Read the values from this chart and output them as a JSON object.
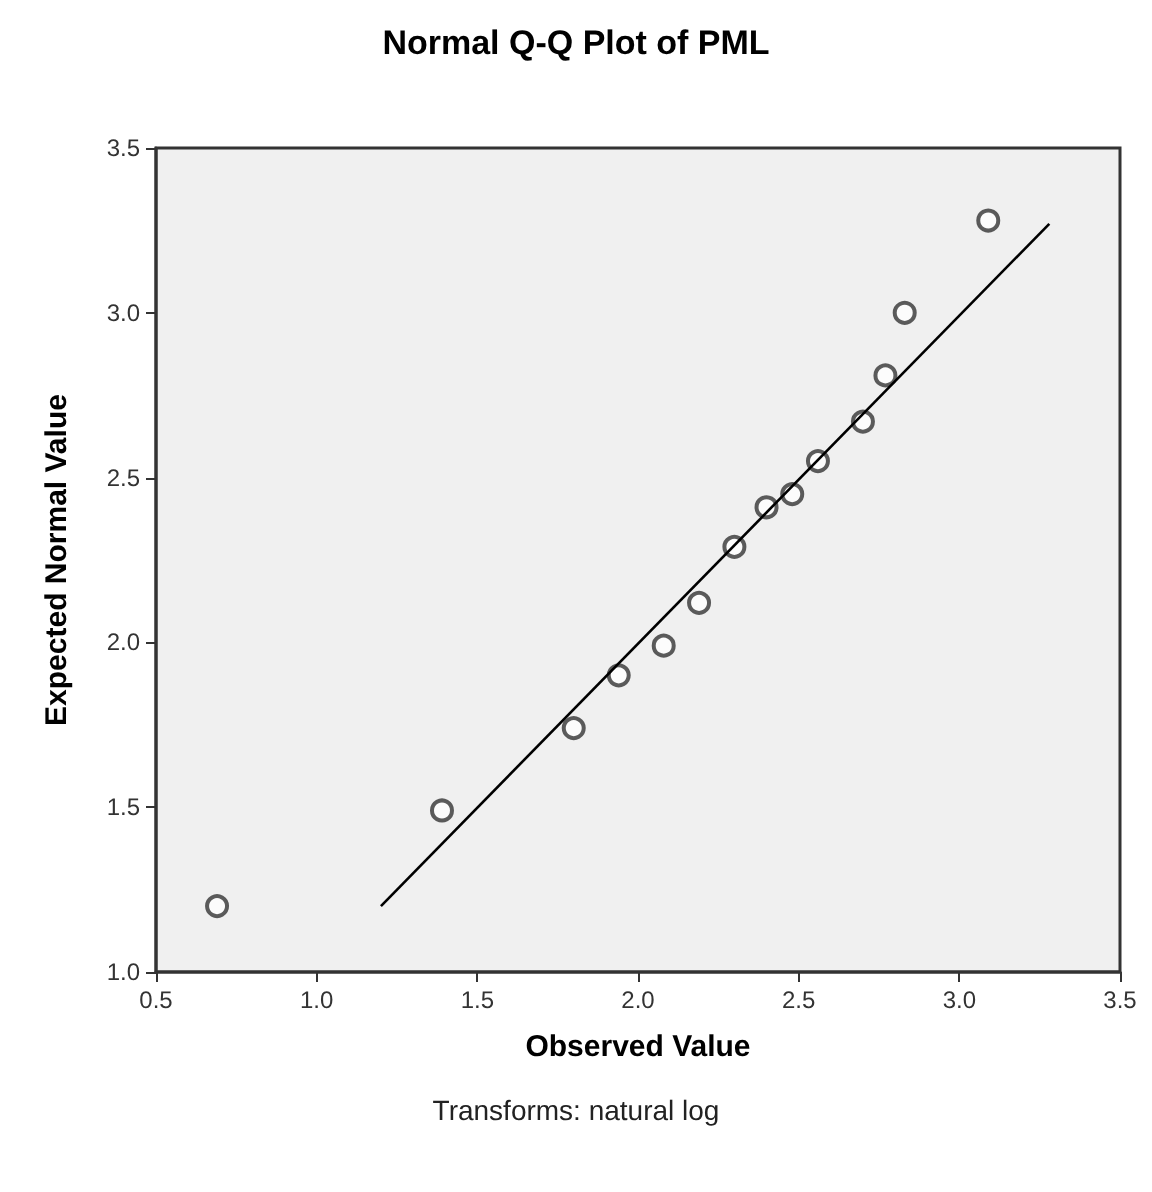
{
  "chart_data": {
    "type": "scatter",
    "title": "Normal Q-Q Plot of PML",
    "xlabel": "Observed Value",
    "ylabel": "Expected Normal Value",
    "annotations": [
      "Transforms: natural log"
    ],
    "series": [
      {
        "color": "#333333",
        "marker": "circle",
        "x": [
          0.69,
          1.39,
          1.8,
          1.94,
          2.08,
          2.19,
          2.3,
          2.4,
          2.48,
          2.56,
          2.7,
          2.77,
          2.83,
          3.09
        ],
        "values": [
          1.2,
          1.49,
          1.74,
          1.9,
          1.99,
          2.12,
          2.29,
          2.41,
          2.45,
          2.55,
          2.67,
          2.81,
          3.0,
          3.28
        ]
      },
      {
        "type": "line",
        "color": "#000000",
        "marker": "none",
        "x": [
          1.2,
          3.28
        ],
        "values": [
          1.2,
          3.27
        ]
      }
    ],
    "xlim": [
      0.5,
      3.5
    ],
    "xticks": [
      {
        "value": 0.5,
        "label": "0.5"
      },
      {
        "value": 1,
        "label": "1.0"
      },
      {
        "value": 1.5,
        "label": "1.5"
      },
      {
        "value": 2,
        "label": "2.0"
      },
      {
        "value": 2.5,
        "label": "2.5"
      },
      {
        "value": 3,
        "label": "3.0"
      },
      {
        "value": 3.5,
        "label": "3.5"
      }
    ],
    "ylim": [
      1,
      3.5
    ],
    "yticks": [
      {
        "value": 1,
        "label": "1.0"
      },
      {
        "value": 1.5,
        "label": "1.5"
      },
      {
        "value": 2,
        "label": "2.0"
      },
      {
        "value": 2.5,
        "label": "2.5"
      },
      {
        "value": 3,
        "label": "3.0"
      },
      {
        "value": 3.5,
        "label": "3.5"
      }
    ],
    "grid": false
  }
}
